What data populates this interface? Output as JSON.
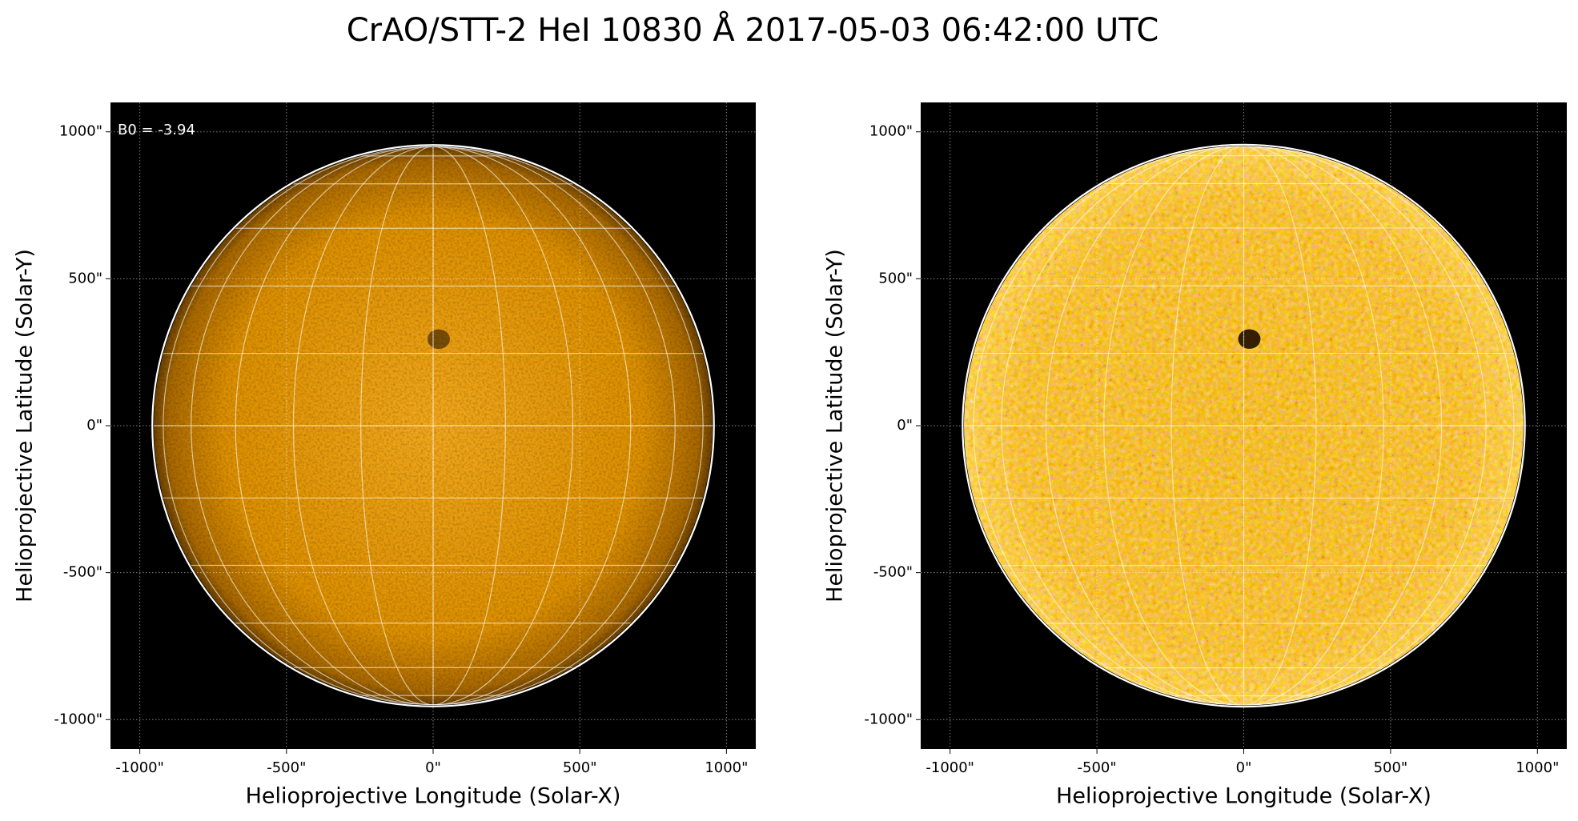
{
  "title": "CrAO/STT-2 HeI 10830 Å 2017-05-03 06:42:00 UTC",
  "chart_data": [
    {
      "type": "image",
      "xlabel": "Helioprojective Longitude (Solar-X)",
      "ylabel": "Helioprojective Latitude (Solar-Y)",
      "annotation": "B0 = -3.94",
      "contrast": "normal",
      "xlim": [
        -1100,
        1100
      ],
      "ylim": [
        -1100,
        1100
      ],
      "xticks": [
        {
          "value": -1000,
          "label": "-1000\""
        },
        {
          "value": -500,
          "label": "-500\""
        },
        {
          "value": 0,
          "label": "0\""
        },
        {
          "value": 500,
          "label": "500\""
        },
        {
          "value": 1000,
          "label": "1000\""
        }
      ],
      "yticks": [
        {
          "value": -1000,
          "label": "-1000\""
        },
        {
          "value": -500,
          "label": "-500\""
        },
        {
          "value": 0,
          "label": "0\""
        },
        {
          "value": 500,
          "label": "500\""
        },
        {
          "value": 1000,
          "label": "1000\""
        }
      ],
      "grid": true
    },
    {
      "type": "image",
      "xlabel": "Helioprojective Longitude (Solar-X)",
      "ylabel": "Helioprojective Latitude (Solar-Y)",
      "contrast": "enhanced",
      "xlim": [
        -1100,
        1100
      ],
      "ylim": [
        -1100,
        1100
      ],
      "xticks": [
        {
          "value": -1000,
          "label": "-1000\""
        },
        {
          "value": -500,
          "label": "-500\""
        },
        {
          "value": 0,
          "label": "0\""
        },
        {
          "value": 500,
          "label": "500\""
        },
        {
          "value": 1000,
          "label": "1000\""
        }
      ],
      "yticks": [
        {
          "value": -1000,
          "label": "-1000\""
        },
        {
          "value": -500,
          "label": "-500\""
        },
        {
          "value": 0,
          "label": "0\""
        },
        {
          "value": 500,
          "label": "500\""
        },
        {
          "value": 1000,
          "label": "1000\""
        }
      ],
      "grid": true
    }
  ]
}
